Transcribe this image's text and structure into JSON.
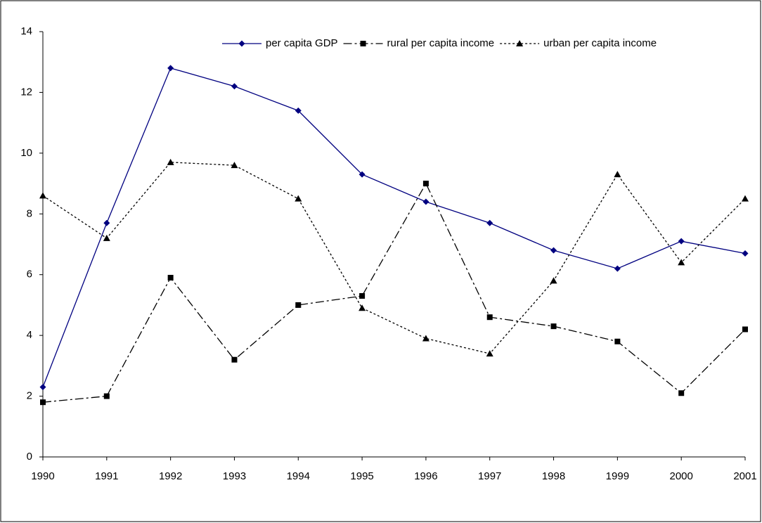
{
  "chart_data": {
    "type": "line",
    "categories": [
      "1990",
      "1991",
      "1992",
      "1993",
      "1994",
      "1995",
      "1996",
      "1997",
      "1998",
      "1999",
      "2000",
      "2001"
    ],
    "series": [
      {
        "name": "per capita GDP",
        "color": "#000080",
        "dash": "solid",
        "marker": "diamond",
        "values": [
          2.3,
          7.7,
          12.8,
          12.2,
          11.4,
          9.3,
          8.4,
          7.7,
          6.8,
          6.2,
          7.1,
          6.7
        ]
      },
      {
        "name": "rural per capita income",
        "color": "#000000",
        "dash": "dash-dot",
        "marker": "square",
        "values": [
          1.8,
          2.0,
          5.9,
          3.2,
          5.0,
          5.3,
          9.0,
          4.6,
          4.3,
          3.8,
          2.1,
          4.2
        ]
      },
      {
        "name": "urban per capita income",
        "color": "#000000",
        "dash": "dotted",
        "marker": "triangle",
        "values": [
          8.6,
          7.2,
          9.7,
          9.6,
          8.5,
          4.9,
          3.9,
          3.4,
          5.8,
          9.3,
          6.4,
          8.5
        ]
      }
    ],
    "ylim": [
      0,
      14
    ],
    "yticks": [
      0,
      2,
      4,
      6,
      8,
      10,
      12,
      14
    ],
    "grid": false,
    "legend": "top-right"
  }
}
